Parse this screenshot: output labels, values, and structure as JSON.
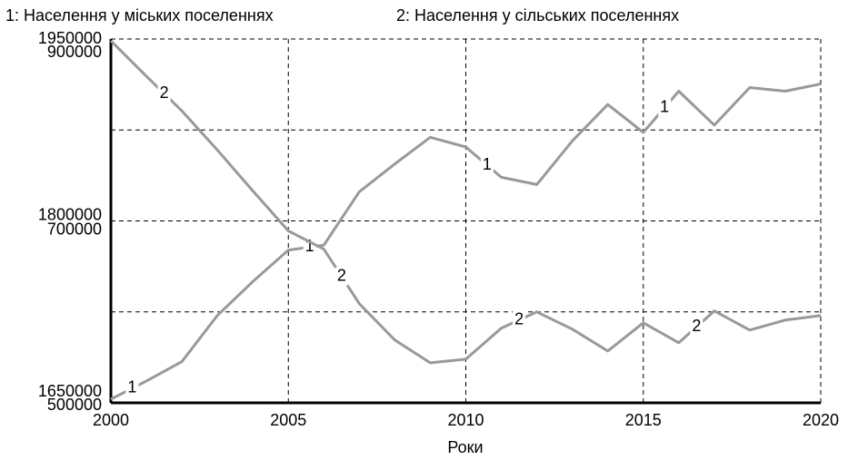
{
  "chart_data": {
    "type": "line",
    "x_label": "Роки",
    "x": [
      2000,
      2001,
      2002,
      2003,
      2004,
      2005,
      2006,
      2007,
      2008,
      2009,
      2010,
      2011,
      2012,
      2013,
      2014,
      2015,
      2016,
      2017,
      2018,
      2019,
      2020
    ],
    "xlim": [
      2000,
      2020
    ],
    "xticks": [
      2000,
      2005,
      2010,
      2015,
      2020
    ],
    "ylim": [
      1650000,
      1950000
    ],
    "yticks": [
      1650000,
      1800000,
      1950000
    ],
    "minor_yticks": [
      1725000,
      1875000
    ],
    "y2lim": [
      500000,
      900000
    ],
    "y2ticks": [
      500000,
      700000,
      900000
    ],
    "grid": true,
    "series": [
      {
        "name": "1: Населення у міських поселеннях",
        "line_label": "1",
        "color": "#999999",
        "values": [
          1653000,
          1668000,
          1684000,
          1722000,
          1750000,
          1776000,
          1780000,
          1824000,
          1847000,
          1869000,
          1861000,
          1836000,
          1830000,
          1866000,
          1896000,
          1873000,
          1907000,
          1879000,
          1910000,
          1907000,
          1913000
        ]
      },
      {
        "name": "2: Населення у сільських поселеннях",
        "line_label": "2",
        "color": "#999999",
        "axis": "y2",
        "values": [
          898000,
          859000,
          821000,
          778000,
          733000,
          689000,
          669000,
          609000,
          569000,
          544000,
          548000,
          582000,
          600000,
          581000,
          557000,
          588000,
          566000,
          601000,
          580000,
          591000,
          596000
        ]
      }
    ]
  }
}
